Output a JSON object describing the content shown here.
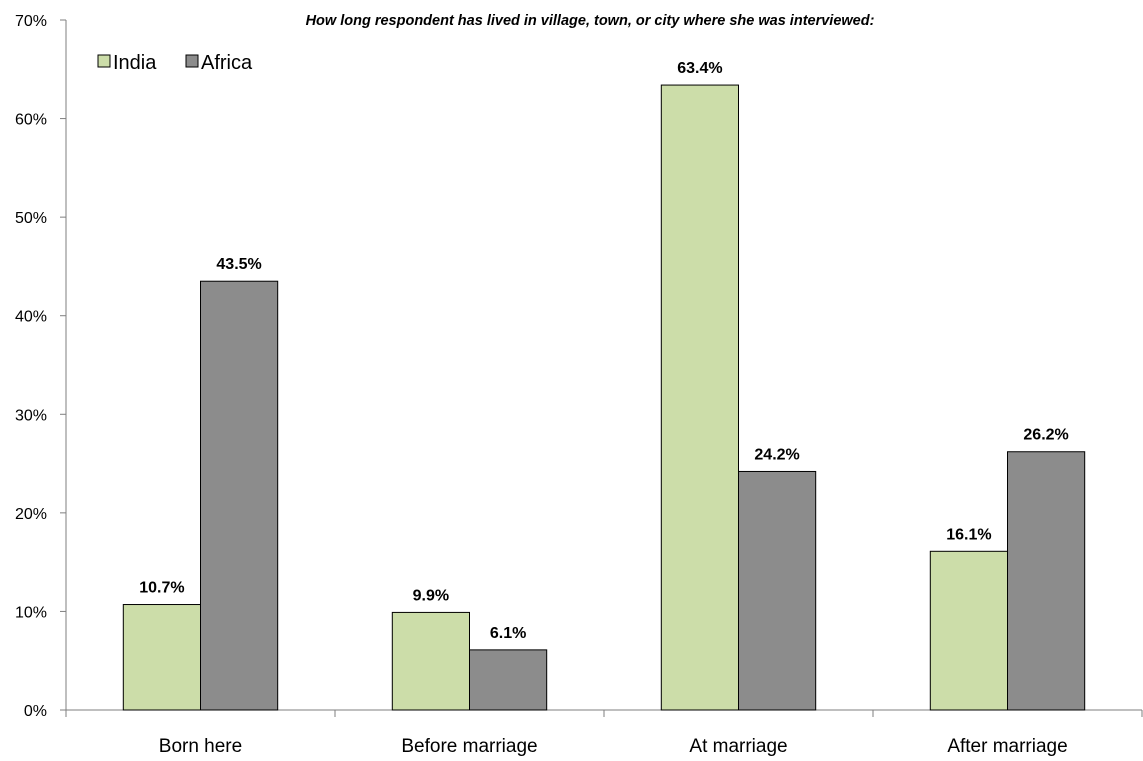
{
  "chart_data": {
    "type": "bar",
    "title": "How long respondent has lived in village, town, or city where she was interviewed:",
    "categories": [
      "Born here",
      "Before marriage",
      "At marriage",
      "After marriage"
    ],
    "series": [
      {
        "name": "India",
        "color": "#ccdda9",
        "values": [
          10.7,
          9.9,
          63.4,
          16.1
        ],
        "labels": [
          "10.7%",
          "9.9%",
          "63.4%",
          "16.1%"
        ]
      },
      {
        "name": "Africa",
        "color": "#8c8c8c",
        "values": [
          43.5,
          6.1,
          24.2,
          26.2
        ],
        "labels": [
          "43.5%",
          "6.1%",
          "24.2%",
          "26.2%"
        ]
      }
    ],
    "ylim": [
      0,
      70
    ],
    "yticks": [
      0,
      10,
      20,
      30,
      40,
      50,
      60,
      70
    ],
    "ytick_labels": [
      "0%",
      "10%",
      "20%",
      "30%",
      "40%",
      "50%",
      "60%",
      "70%"
    ],
    "xlabel": "",
    "ylabel": "",
    "grid": false,
    "legend_position": "top-left"
  }
}
